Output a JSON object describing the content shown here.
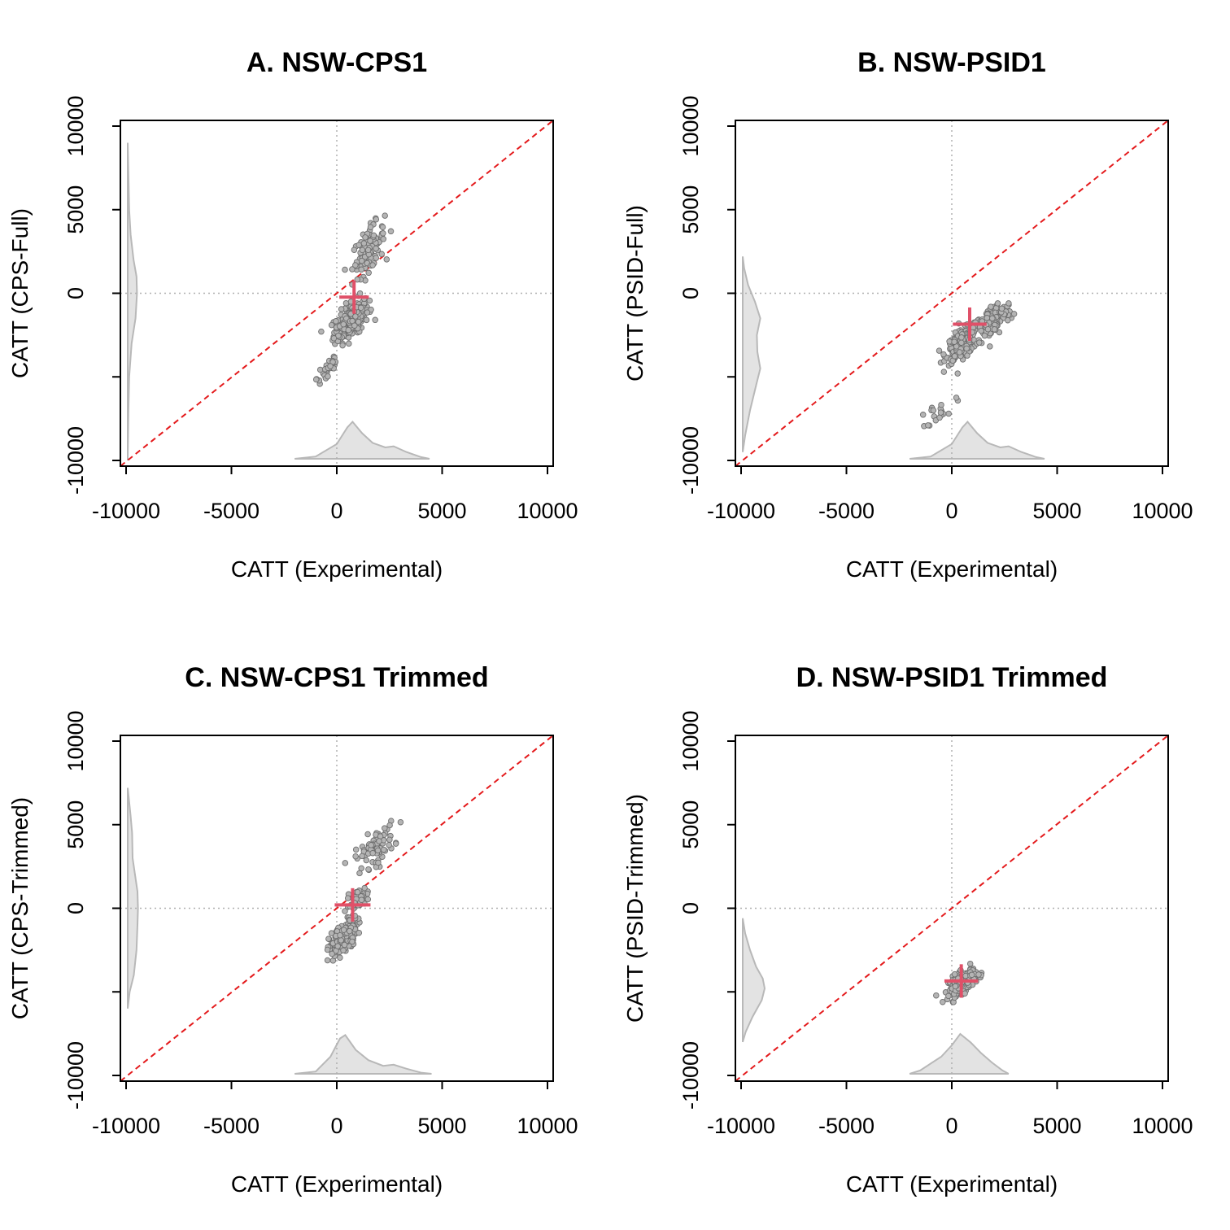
{
  "chart_data": [
    {
      "type": "scatter",
      "title": "A. NSW-CPS1",
      "xlabel": "CATT (Experimental)",
      "ylabel": "CATT (CPS-Full)",
      "xlim": [
        -10000,
        10000
      ],
      "ylim": [
        -10000,
        10000
      ],
      "xticks": [
        -10000,
        -5000,
        0,
        5000,
        10000
      ],
      "yticks": [
        -10000,
        -5000,
        0,
        5000,
        10000
      ],
      "xtick_labels": [
        "-10000",
        "-5000",
        "0",
        "5000",
        "10000"
      ],
      "ytick_labels": [
        "-10000",
        "",
        "0",
        "5000",
        "10000"
      ],
      "reference_line": "y = x",
      "reference_color": "#e41a1c",
      "point_color": "#8c8c8c",
      "mean_marker_color": "#e05068",
      "mean": {
        "x": 820,
        "y": -230,
        "x_half_range": 700,
        "y_half_range": 1000
      },
      "cloud": [
        {
          "x": 700,
          "y": -1600,
          "sx": 750,
          "sy": 1100,
          "n": 220
        },
        {
          "x": 1500,
          "y": 2600,
          "sx": 700,
          "sy": 1400,
          "n": 110
        },
        {
          "x": -400,
          "y": -4500,
          "sx": 500,
          "sy": 900,
          "n": 30
        }
      ],
      "y_density": [
        [
          -10000,
          0
        ],
        [
          -9000,
          0.01
        ],
        [
          -7000,
          0.03
        ],
        [
          -5000,
          0.06
        ],
        [
          -3000,
          0.16
        ],
        [
          -1500,
          0.32
        ],
        [
          0,
          0.38
        ],
        [
          1000,
          0.36
        ],
        [
          2000,
          0.24
        ],
        [
          3500,
          0.12
        ],
        [
          5000,
          0.06
        ],
        [
          7000,
          0.03
        ],
        [
          9000,
          0
        ]
      ],
      "x_density": [
        [
          -2000,
          0
        ],
        [
          -1000,
          0.04
        ],
        [
          0,
          0.26
        ],
        [
          500,
          0.55
        ],
        [
          750,
          0.65
        ],
        [
          1200,
          0.45
        ],
        [
          1700,
          0.28
        ],
        [
          2300,
          0.2
        ],
        [
          2700,
          0.22
        ],
        [
          3300,
          0.12
        ],
        [
          4000,
          0.03
        ],
        [
          4400,
          0
        ]
      ]
    },
    {
      "type": "scatter",
      "title": "B. NSW-PSID1",
      "xlabel": "CATT (Experimental)",
      "ylabel": "CATT (PSID-Full)",
      "xlim": [
        -10000,
        10000
      ],
      "ylim": [
        -10000,
        10000
      ],
      "xticks": [
        -10000,
        -5000,
        0,
        5000,
        10000
      ],
      "yticks": [
        -10000,
        -5000,
        0,
        5000,
        10000
      ],
      "xtick_labels": [
        "-10000",
        "-5000",
        "0",
        "5000",
        "10000"
      ],
      "ytick_labels": [
        "-10000",
        "",
        "0",
        "5000",
        "10000"
      ],
      "reference_line": "y = x",
      "reference_color": "#e41a1c",
      "point_color": "#8c8c8c",
      "mean_marker_color": "#e05068",
      "mean": {
        "x": 850,
        "y": -1850,
        "x_half_range": 800,
        "y_half_range": 1000
      },
      "cloud": [
        {
          "x": 500,
          "y": -3000,
          "sx": 700,
          "sy": 900,
          "n": 220
        },
        {
          "x": 1900,
          "y": -1700,
          "sx": 900,
          "sy": 1100,
          "n": 120
        },
        {
          "x": -500,
          "y": -7000,
          "sx": 600,
          "sy": 700,
          "n": 20
        }
      ],
      "y_density": [
        [
          -9500,
          0
        ],
        [
          -8500,
          0.1
        ],
        [
          -7000,
          0.3
        ],
        [
          -5500,
          0.55
        ],
        [
          -4500,
          0.72
        ],
        [
          -3500,
          0.6
        ],
        [
          -2500,
          0.58
        ],
        [
          -1500,
          0.72
        ],
        [
          -500,
          0.5
        ],
        [
          500,
          0.22
        ],
        [
          1500,
          0.06
        ],
        [
          2200,
          0
        ]
      ],
      "x_density": [
        [
          -2000,
          0
        ],
        [
          -1000,
          0.04
        ],
        [
          0,
          0.26
        ],
        [
          500,
          0.55
        ],
        [
          750,
          0.65
        ],
        [
          1200,
          0.45
        ],
        [
          1700,
          0.28
        ],
        [
          2300,
          0.2
        ],
        [
          2700,
          0.22
        ],
        [
          3300,
          0.12
        ],
        [
          4000,
          0.03
        ],
        [
          4400,
          0
        ]
      ]
    },
    {
      "type": "scatter",
      "title": "C. NSW-CPS1 Trimmed",
      "xlabel": "CATT (Experimental)",
      "ylabel": "CATT (CPS-Trimmed)",
      "xlim": [
        -10000,
        10000
      ],
      "ylim": [
        -10000,
        10000
      ],
      "xticks": [
        -10000,
        -5000,
        0,
        5000,
        10000
      ],
      "yticks": [
        -10000,
        -5000,
        0,
        5000,
        10000
      ],
      "xtick_labels": [
        "-10000",
        "-5000",
        "0",
        "5000",
        "10000"
      ],
      "ytick_labels": [
        "-10000",
        "",
        "0",
        "5000",
        "10000"
      ],
      "reference_line": "y = x",
      "reference_color": "#e41a1c",
      "point_color": "#8c8c8c",
      "mean_marker_color": "#e05068",
      "mean": {
        "x": 750,
        "y": 200,
        "x_half_range": 850,
        "y_half_range": 1000
      },
      "cloud": [
        {
          "x": 300,
          "y": -1800,
          "sx": 600,
          "sy": 1000,
          "n": 200
        },
        {
          "x": 1800,
          "y": 3600,
          "sx": 850,
          "sy": 1100,
          "n": 80
        },
        {
          "x": 1000,
          "y": 500,
          "sx": 500,
          "sy": 700,
          "n": 40
        }
      ],
      "y_density": [
        [
          -6000,
          0
        ],
        [
          -5000,
          0.08
        ],
        [
          -4000,
          0.25
        ],
        [
          -2500,
          0.36
        ],
        [
          -1000,
          0.4
        ],
        [
          0,
          0.42
        ],
        [
          1000,
          0.4
        ],
        [
          2000,
          0.3
        ],
        [
          3000,
          0.2
        ],
        [
          4500,
          0.18
        ],
        [
          5500,
          0.12
        ],
        [
          6500,
          0.05
        ],
        [
          7200,
          0
        ]
      ],
      "x_density": [
        [
          -2000,
          0
        ],
        [
          -1000,
          0.04
        ],
        [
          -300,
          0.3
        ],
        [
          150,
          0.62
        ],
        [
          400,
          0.68
        ],
        [
          900,
          0.42
        ],
        [
          1500,
          0.24
        ],
        [
          2200,
          0.14
        ],
        [
          2700,
          0.16
        ],
        [
          3300,
          0.09
        ],
        [
          4000,
          0.02
        ],
        [
          4500,
          0
        ]
      ]
    },
    {
      "type": "scatter",
      "title": "D. NSW-PSID1 Trimmed",
      "xlabel": "CATT (Experimental)",
      "ylabel": "CATT (PSID-Trimmed)",
      "xlim": [
        -10000,
        10000
      ],
      "ylim": [
        -10000,
        10000
      ],
      "xticks": [
        -10000,
        -5000,
        0,
        5000,
        10000
      ],
      "yticks": [
        -10000,
        -5000,
        0,
        5000,
        10000
      ],
      "xtick_labels": [
        "-10000",
        "-5000",
        "0",
        "5000",
        "10000"
      ],
      "ytick_labels": [
        "-10000",
        "",
        "0",
        "5000",
        "10000"
      ],
      "reference_line": "y = x",
      "reference_color": "#e41a1c",
      "point_color": "#8c8c8c",
      "mean_marker_color": "#e05068",
      "mean": {
        "x": 450,
        "y": -4350,
        "x_half_range": 800,
        "y_half_range": 1000
      },
      "cloud": [
        {
          "x": 500,
          "y": -4400,
          "sx": 600,
          "sy": 700,
          "n": 210
        }
      ],
      "y_density": [
        [
          -8000,
          0
        ],
        [
          -7400,
          0.12
        ],
        [
          -6500,
          0.4
        ],
        [
          -5500,
          0.78
        ],
        [
          -4800,
          0.9
        ],
        [
          -4200,
          0.82
        ],
        [
          -3500,
          0.55
        ],
        [
          -2500,
          0.3
        ],
        [
          -1500,
          0.1
        ],
        [
          -600,
          0
        ]
      ],
      "x_density": [
        [
          -2000,
          0
        ],
        [
          -1500,
          0.06
        ],
        [
          -500,
          0.3
        ],
        [
          0,
          0.5
        ],
        [
          400,
          0.7
        ],
        [
          900,
          0.55
        ],
        [
          1400,
          0.36
        ],
        [
          1900,
          0.2
        ],
        [
          2400,
          0.06
        ],
        [
          2700,
          0
        ]
      ]
    }
  ]
}
